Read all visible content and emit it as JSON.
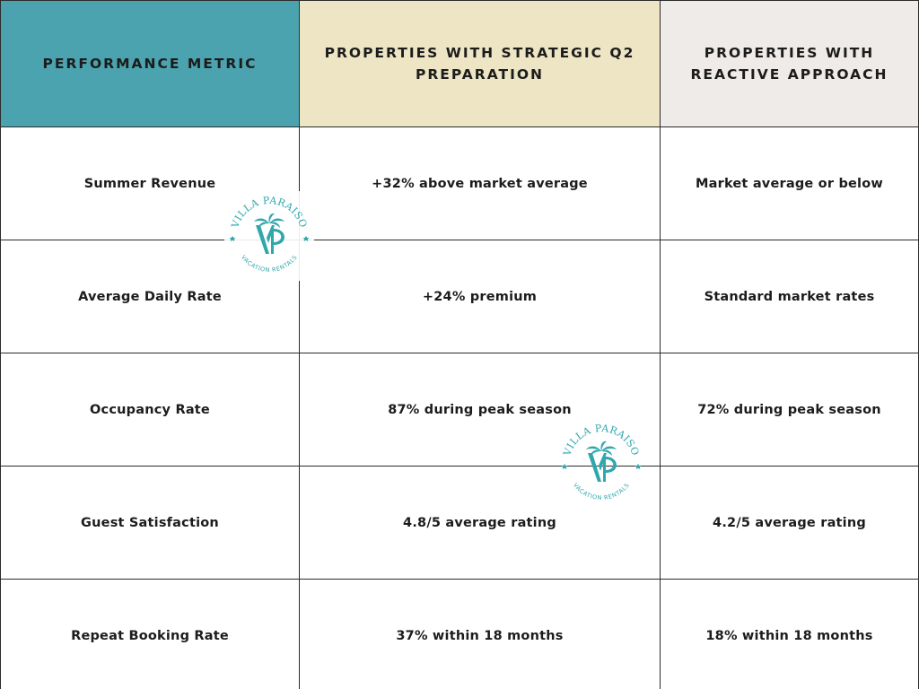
{
  "table": {
    "headers": [
      "PERFORMANCE METRIC",
      "PROPERTIES WITH STRATEGIC Q2 PREPARATION",
      "PROPERTIES WITH REACTIVE APPROACH"
    ],
    "rows": [
      [
        "Summer Revenue",
        "+32% above market average",
        "Market average or below"
      ],
      [
        "Average Daily Rate",
        "+24% premium",
        "Standard market rates"
      ],
      [
        "Occupancy Rate",
        "87% during peak season",
        "72% during peak season"
      ],
      [
        "Guest Satisfaction",
        "4.8/5 average rating",
        "4.2/5 average rating"
      ],
      [
        "Repeat Booking Rate",
        "37% within 18 months",
        "18% within 18 months"
      ]
    ]
  },
  "logo": {
    "top_text": "VILLA PARAISO",
    "bottom_text": "VACATION RENTALS",
    "monogram": "VP",
    "color": "#2fa7ad"
  },
  "colors": {
    "header_metric_bg": "#4aa3ae",
    "header_strategic_bg": "#ede5c3",
    "header_reactive_bg": "#eeebe8",
    "border": "#2b2b2b"
  }
}
